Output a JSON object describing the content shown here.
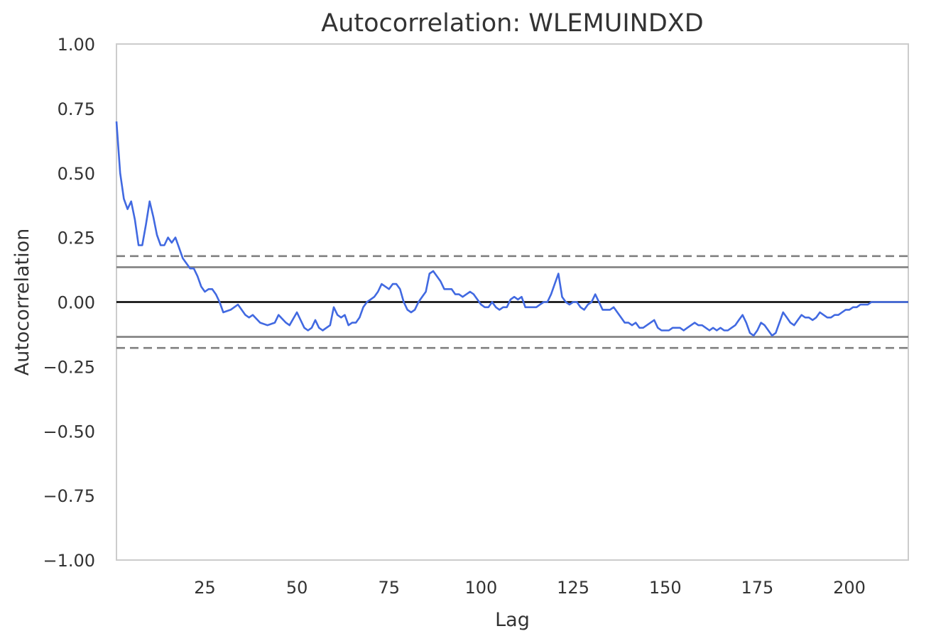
{
  "chart_data": {
    "type": "line",
    "title": "Autocorrelation: WLEMUINDXD",
    "xlabel": "Lag",
    "ylabel": "Autocorrelation",
    "xlim": [
      1,
      216
    ],
    "ylim": [
      -1.0,
      1.0
    ],
    "x_ticks": [
      25,
      50,
      75,
      100,
      125,
      150,
      175,
      200
    ],
    "y_ticks": [
      1.0,
      0.75,
      0.5,
      0.25,
      0.0,
      -0.25,
      -0.5,
      -0.75,
      -1.0
    ],
    "y_tick_labels": [
      "1.00",
      "0.75",
      "0.50",
      "0.25",
      "0.00",
      "−0.25",
      "−0.50",
      "−0.75",
      "−1.00"
    ],
    "grid": false,
    "reference_lines": [
      {
        "y": 0.178,
        "style": "dashed",
        "color": "#808080"
      },
      {
        "y": 0.135,
        "style": "solid",
        "color": "#808080"
      },
      {
        "y": 0.0,
        "style": "solid",
        "color": "#000000"
      },
      {
        "y": -0.135,
        "style": "solid",
        "color": "#808080"
      },
      {
        "y": -0.178,
        "style": "dashed",
        "color": "#808080"
      }
    ],
    "series": [
      {
        "color": "#4169e1",
        "points": [
          [
            1,
            0.7
          ],
          [
            2,
            0.5
          ],
          [
            3,
            0.4
          ],
          [
            4,
            0.36
          ],
          [
            5,
            0.39
          ],
          [
            6,
            0.32
          ],
          [
            7,
            0.22
          ],
          [
            8,
            0.22
          ],
          [
            9,
            0.3
          ],
          [
            10,
            0.39
          ],
          [
            11,
            0.33
          ],
          [
            12,
            0.26
          ],
          [
            13,
            0.22
          ],
          [
            14,
            0.22
          ],
          [
            15,
            0.25
          ],
          [
            16,
            0.23
          ],
          [
            17,
            0.25
          ],
          [
            18,
            0.21
          ],
          [
            19,
            0.17
          ],
          [
            20,
            0.15
          ],
          [
            21,
            0.13
          ],
          [
            22,
            0.13
          ],
          [
            23,
            0.1
          ],
          [
            24,
            0.06
          ],
          [
            25,
            0.04
          ],
          [
            26,
            0.05
          ],
          [
            27,
            0.05
          ],
          [
            28,
            0.03
          ],
          [
            29,
            0.0
          ],
          [
            30,
            -0.04
          ],
          [
            32,
            -0.03
          ],
          [
            34,
            -0.01
          ],
          [
            36,
            -0.05
          ],
          [
            37,
            -0.06
          ],
          [
            38,
            -0.05
          ],
          [
            40,
            -0.08
          ],
          [
            42,
            -0.09
          ],
          [
            44,
            -0.08
          ],
          [
            45,
            -0.05
          ],
          [
            47,
            -0.08
          ],
          [
            48,
            -0.09
          ],
          [
            50,
            -0.04
          ],
          [
            52,
            -0.1
          ],
          [
            53,
            -0.11
          ],
          [
            54,
            -0.1
          ],
          [
            55,
            -0.07
          ],
          [
            56,
            -0.1
          ],
          [
            57,
            -0.11
          ],
          [
            59,
            -0.09
          ],
          [
            60,
            -0.02
          ],
          [
            61,
            -0.05
          ],
          [
            62,
            -0.06
          ],
          [
            63,
            -0.05
          ],
          [
            64,
            -0.09
          ],
          [
            65,
            -0.08
          ],
          [
            66,
            -0.08
          ],
          [
            67,
            -0.06
          ],
          [
            68,
            -0.02
          ],
          [
            69,
            0.0
          ],
          [
            70,
            0.01
          ],
          [
            71,
            0.02
          ],
          [
            72,
            0.04
          ],
          [
            73,
            0.07
          ],
          [
            74,
            0.06
          ],
          [
            75,
            0.05
          ],
          [
            76,
            0.07
          ],
          [
            77,
            0.07
          ],
          [
            78,
            0.05
          ],
          [
            79,
            0.0
          ],
          [
            80,
            -0.03
          ],
          [
            81,
            -0.04
          ],
          [
            82,
            -0.03
          ],
          [
            83,
            0.0
          ],
          [
            84,
            0.02
          ],
          [
            85,
            0.04
          ],
          [
            86,
            0.11
          ],
          [
            87,
            0.12
          ],
          [
            88,
            0.1
          ],
          [
            89,
            0.08
          ],
          [
            90,
            0.05
          ],
          [
            91,
            0.05
          ],
          [
            92,
            0.05
          ],
          [
            93,
            0.03
          ],
          [
            94,
            0.03
          ],
          [
            95,
            0.02
          ],
          [
            96,
            0.03
          ],
          [
            97,
            0.04
          ],
          [
            98,
            0.03
          ],
          [
            99,
            0.01
          ],
          [
            100,
            -0.01
          ],
          [
            101,
            -0.02
          ],
          [
            102,
            -0.02
          ],
          [
            103,
            0.0
          ],
          [
            104,
            -0.02
          ],
          [
            105,
            -0.03
          ],
          [
            106,
            -0.02
          ],
          [
            107,
            -0.02
          ],
          [
            108,
            0.01
          ],
          [
            109,
            0.02
          ],
          [
            110,
            0.01
          ],
          [
            111,
            0.02
          ],
          [
            112,
            -0.02
          ],
          [
            113,
            -0.02
          ],
          [
            114,
            -0.02
          ],
          [
            115,
            -0.02
          ],
          [
            116,
            -0.01
          ],
          [
            117,
            0.0
          ],
          [
            118,
            0.0
          ],
          [
            119,
            0.03
          ],
          [
            120,
            0.07
          ],
          [
            121,
            0.11
          ],
          [
            122,
            0.02
          ],
          [
            123,
            0.0
          ],
          [
            124,
            -0.01
          ],
          [
            125,
            0.0
          ],
          [
            126,
            0.0
          ],
          [
            127,
            -0.02
          ],
          [
            128,
            -0.03
          ],
          [
            129,
            -0.01
          ],
          [
            130,
            0.0
          ],
          [
            131,
            0.03
          ],
          [
            132,
            0.0
          ],
          [
            133,
            -0.03
          ],
          [
            134,
            -0.03
          ],
          [
            135,
            -0.03
          ],
          [
            136,
            -0.02
          ],
          [
            137,
            -0.04
          ],
          [
            138,
            -0.06
          ],
          [
            139,
            -0.08
          ],
          [
            140,
            -0.08
          ],
          [
            141,
            -0.09
          ],
          [
            142,
            -0.08
          ],
          [
            143,
            -0.1
          ],
          [
            144,
            -0.1
          ],
          [
            145,
            -0.09
          ],
          [
            146,
            -0.08
          ],
          [
            147,
            -0.07
          ],
          [
            148,
            -0.1
          ],
          [
            149,
            -0.11
          ],
          [
            150,
            -0.11
          ],
          [
            151,
            -0.11
          ],
          [
            152,
            -0.1
          ],
          [
            153,
            -0.1
          ],
          [
            154,
            -0.1
          ],
          [
            155,
            -0.11
          ],
          [
            156,
            -0.1
          ],
          [
            157,
            -0.09
          ],
          [
            158,
            -0.08
          ],
          [
            159,
            -0.09
          ],
          [
            160,
            -0.09
          ],
          [
            161,
            -0.1
          ],
          [
            162,
            -0.11
          ],
          [
            163,
            -0.1
          ],
          [
            164,
            -0.11
          ],
          [
            165,
            -0.1
          ],
          [
            166,
            -0.11
          ],
          [
            167,
            -0.11
          ],
          [
            168,
            -0.1
          ],
          [
            169,
            -0.09
          ],
          [
            170,
            -0.07
          ],
          [
            171,
            -0.05
          ],
          [
            172,
            -0.08
          ],
          [
            173,
            -0.12
          ],
          [
            174,
            -0.13
          ],
          [
            175,
            -0.11
          ],
          [
            176,
            -0.08
          ],
          [
            177,
            -0.09
          ],
          [
            178,
            -0.11
          ],
          [
            179,
            -0.13
          ],
          [
            180,
            -0.12
          ],
          [
            181,
            -0.08
          ],
          [
            182,
            -0.04
          ],
          [
            183,
            -0.06
          ],
          [
            184,
            -0.08
          ],
          [
            185,
            -0.09
          ],
          [
            186,
            -0.07
          ],
          [
            187,
            -0.05
          ],
          [
            188,
            -0.06
          ],
          [
            189,
            -0.06
          ],
          [
            190,
            -0.07
          ],
          [
            191,
            -0.06
          ],
          [
            192,
            -0.04
          ],
          [
            193,
            -0.05
          ],
          [
            194,
            -0.06
          ],
          [
            195,
            -0.06
          ],
          [
            196,
            -0.05
          ],
          [
            197,
            -0.05
          ],
          [
            198,
            -0.04
          ],
          [
            199,
            -0.03
          ],
          [
            200,
            -0.03
          ],
          [
            201,
            -0.02
          ],
          [
            202,
            -0.02
          ],
          [
            203,
            -0.01
          ],
          [
            204,
            -0.01
          ],
          [
            205,
            -0.01
          ],
          [
            206,
            0.0
          ],
          [
            207,
            0.0
          ],
          [
            208,
            0.0
          ],
          [
            209,
            0.0
          ],
          [
            210,
            0.0
          ],
          [
            211,
            0.0
          ],
          [
            212,
            0.0
          ],
          [
            213,
            0.0
          ],
          [
            214,
            0.0
          ],
          [
            215,
            0.0
          ],
          [
            216,
            0.0
          ]
        ]
      }
    ]
  }
}
